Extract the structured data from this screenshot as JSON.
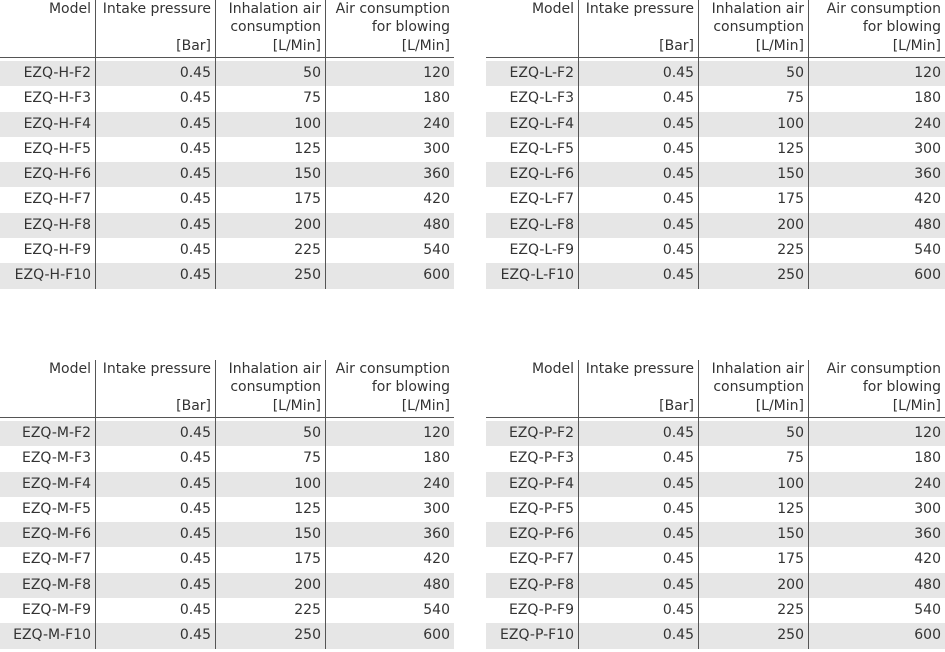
{
  "columns": [
    {
      "title_line1": "Model",
      "title_line2": "",
      "unit": ""
    },
    {
      "title_line1": "Intake pressure",
      "title_line2": "",
      "unit": "[Bar]"
    },
    {
      "title_line1": "Inhalation air",
      "title_line2": "consumption",
      "unit": "[L/Min]"
    },
    {
      "title_line1": "Air consumption",
      "title_line2": "for blowing",
      "unit": "[L/Min]"
    }
  ],
  "tables": [
    {
      "rows": [
        {
          "model": "EZQ-H-F2",
          "pressure": "0.45",
          "inhalation": "50",
          "blowing": "120"
        },
        {
          "model": "EZQ-H-F3",
          "pressure": "0.45",
          "inhalation": "75",
          "blowing": "180"
        },
        {
          "model": "EZQ-H-F4",
          "pressure": "0.45",
          "inhalation": "100",
          "blowing": "240"
        },
        {
          "model": "EZQ-H-F5",
          "pressure": "0.45",
          "inhalation": "125",
          "blowing": "300"
        },
        {
          "model": "EZQ-H-F6",
          "pressure": "0.45",
          "inhalation": "150",
          "blowing": "360"
        },
        {
          "model": "EZQ-H-F7",
          "pressure": "0.45",
          "inhalation": "175",
          "blowing": "420"
        },
        {
          "model": "EZQ-H-F8",
          "pressure": "0.45",
          "inhalation": "200",
          "blowing": "480"
        },
        {
          "model": "EZQ-H-F9",
          "pressure": "0.45",
          "inhalation": "225",
          "blowing": "540"
        },
        {
          "model": "EZQ-H-F10",
          "pressure": "0.45",
          "inhalation": "250",
          "blowing": "600"
        }
      ]
    },
    {
      "rows": [
        {
          "model": "EZQ-L-F2",
          "pressure": "0.45",
          "inhalation": "50",
          "blowing": "120"
        },
        {
          "model": "EZQ-L-F3",
          "pressure": "0.45",
          "inhalation": "75",
          "blowing": "180"
        },
        {
          "model": "EZQ-L-F4",
          "pressure": "0.45",
          "inhalation": "100",
          "blowing": "240"
        },
        {
          "model": "EZQ-L-F5",
          "pressure": "0.45",
          "inhalation": "125",
          "blowing": "300"
        },
        {
          "model": "EZQ-L-F6",
          "pressure": "0.45",
          "inhalation": "150",
          "blowing": "360"
        },
        {
          "model": "EZQ-L-F7",
          "pressure": "0.45",
          "inhalation": "175",
          "blowing": "420"
        },
        {
          "model": "EZQ-L-F8",
          "pressure": "0.45",
          "inhalation": "200",
          "blowing": "480"
        },
        {
          "model": "EZQ-L-F9",
          "pressure": "0.45",
          "inhalation": "225",
          "blowing": "540"
        },
        {
          "model": "EZQ-L-F10",
          "pressure": "0.45",
          "inhalation": "250",
          "blowing": "600"
        }
      ]
    },
    {
      "rows": [
        {
          "model": "EZQ-M-F2",
          "pressure": "0.45",
          "inhalation": "50",
          "blowing": "120"
        },
        {
          "model": "EZQ-M-F3",
          "pressure": "0.45",
          "inhalation": "75",
          "blowing": "180"
        },
        {
          "model": "EZQ-M-F4",
          "pressure": "0.45",
          "inhalation": "100",
          "blowing": "240"
        },
        {
          "model": "EZQ-M-F5",
          "pressure": "0.45",
          "inhalation": "125",
          "blowing": "300"
        },
        {
          "model": "EZQ-M-F6",
          "pressure": "0.45",
          "inhalation": "150",
          "blowing": "360"
        },
        {
          "model": "EZQ-M-F7",
          "pressure": "0.45",
          "inhalation": "175",
          "blowing": "420"
        },
        {
          "model": "EZQ-M-F8",
          "pressure": "0.45",
          "inhalation": "200",
          "blowing": "480"
        },
        {
          "model": "EZQ-M-F9",
          "pressure": "0.45",
          "inhalation": "225",
          "blowing": "540"
        },
        {
          "model": "EZQ-M-F10",
          "pressure": "0.45",
          "inhalation": "250",
          "blowing": "600"
        }
      ]
    },
    {
      "rows": [
        {
          "model": "EZQ-P-F2",
          "pressure": "0.45",
          "inhalation": "50",
          "blowing": "120"
        },
        {
          "model": "EZQ-P-F3",
          "pressure": "0.45",
          "inhalation": "75",
          "blowing": "180"
        },
        {
          "model": "EZQ-P-F4",
          "pressure": "0.45",
          "inhalation": "100",
          "blowing": "240"
        },
        {
          "model": "EZQ-P-F5",
          "pressure": "0.45",
          "inhalation": "125",
          "blowing": "300"
        },
        {
          "model": "EZQ-P-F6",
          "pressure": "0.45",
          "inhalation": "150",
          "blowing": "360"
        },
        {
          "model": "EZQ-P-F7",
          "pressure": "0.45",
          "inhalation": "175",
          "blowing": "420"
        },
        {
          "model": "EZQ-P-F8",
          "pressure": "0.45",
          "inhalation": "200",
          "blowing": "480"
        },
        {
          "model": "EZQ-P-F9",
          "pressure": "0.45",
          "inhalation": "225",
          "blowing": "540"
        },
        {
          "model": "EZQ-P-F10",
          "pressure": "0.45",
          "inhalation": "250",
          "blowing": "600"
        }
      ]
    }
  ],
  "colors": {
    "row_shade": "#e6e6e6",
    "text": "#333333",
    "rule": "#555555"
  }
}
